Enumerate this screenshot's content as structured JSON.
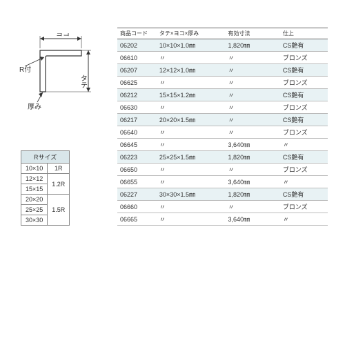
{
  "diagram": {
    "labels": {
      "yoko": "ヨコ",
      "tate": "タテ",
      "r": "R付",
      "atsumi": "厚み"
    }
  },
  "rtable": {
    "header": "Rサイズ",
    "rows": [
      {
        "size": "10×10",
        "r": "1R",
        "rowspan": 1
      },
      {
        "size": "12×12",
        "r": "1.2R",
        "rowspan": 2
      },
      {
        "size": "15×15",
        "r": "",
        "rowspan": 0
      },
      {
        "size": "20×20",
        "r": "1.5R",
        "rowspan": 3
      },
      {
        "size": "25×25",
        "r": "",
        "rowspan": 0
      },
      {
        "size": "30×30",
        "r": "",
        "rowspan": 0
      }
    ]
  },
  "maintable": {
    "headers": {
      "code": "商品コード",
      "dim": "タテ×ヨコ×厚み",
      "len": "有効寸法",
      "fin": "仕上"
    },
    "rows": [
      {
        "code": "06202",
        "dim": "10×10×1.0㎜",
        "len": "1,820㎜",
        "fin": "CS艶有",
        "tint": true
      },
      {
        "code": "06610",
        "dim": "〃",
        "len": "〃",
        "fin": "ブロンズ",
        "tint": false
      },
      {
        "code": "06207",
        "dim": "12×12×1.0㎜",
        "len": "〃",
        "fin": "CS艶有",
        "tint": true
      },
      {
        "code": "06625",
        "dim": "〃",
        "len": "〃",
        "fin": "ブロンズ",
        "tint": false
      },
      {
        "code": "06212",
        "dim": "15×15×1.2㎜",
        "len": "〃",
        "fin": "CS艶有",
        "tint": true
      },
      {
        "code": "06630",
        "dim": "〃",
        "len": "〃",
        "fin": "ブロンズ",
        "tint": false
      },
      {
        "code": "06217",
        "dim": "20×20×1.5㎜",
        "len": "〃",
        "fin": "CS艶有",
        "tint": true
      },
      {
        "code": "06640",
        "dim": "〃",
        "len": "〃",
        "fin": "ブロンズ",
        "tint": false
      },
      {
        "code": "06645",
        "dim": "〃",
        "len": "3,640㎜",
        "fin": "〃",
        "tint": false
      },
      {
        "code": "06223",
        "dim": "25×25×1.5㎜",
        "len": "1,820㎜",
        "fin": "CS艶有",
        "tint": true
      },
      {
        "code": "06650",
        "dim": "〃",
        "len": "〃",
        "fin": "ブロンズ",
        "tint": false
      },
      {
        "code": "06655",
        "dim": "〃",
        "len": "3,640㎜",
        "fin": "〃",
        "tint": false
      },
      {
        "code": "06227",
        "dim": "30×30×1.5㎜",
        "len": "1,820㎜",
        "fin": "CS艶有",
        "tint": true
      },
      {
        "code": "06660",
        "dim": "〃",
        "len": "〃",
        "fin": "ブロンズ",
        "tint": false
      },
      {
        "code": "06665",
        "dim": "〃",
        "len": "3,640㎜",
        "fin": "〃",
        "tint": false
      }
    ]
  }
}
